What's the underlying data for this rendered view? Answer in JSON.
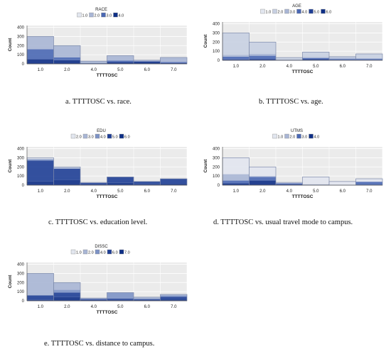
{
  "colors": {
    "plot_bg": "#ebebeb",
    "grid": "#ffffff",
    "axis": "#555555",
    "text": "#222222",
    "shades": [
      "#e2e6ef",
      "#c8d0e2",
      "#a9b6d5",
      "#7d93c6",
      "#4a68b4",
      "#1f3f96",
      "#0e2f86"
    ]
  },
  "captions": [
    "a. TTTTOSC vs. race.",
    "b. TTTTOSC vs. age.",
    "c. TTTTOSC vs. education level.",
    "d. TTTTOSC vs. usual travel mode to campus.",
    "e. TTTTOSC vs. distance to campus."
  ],
  "chart_data": [
    {
      "type": "bar",
      "stacked": true,
      "legend_title": "RACE",
      "xlabel": "TTTTOSC",
      "ylabel": "Count",
      "categories": [
        "1.0",
        "2.0",
        "4.0",
        "5.0",
        "6.0",
        "7.0"
      ],
      "x_positions": [
        1,
        2,
        3,
        4,
        5,
        6
      ],
      "yticks": [
        0,
        100,
        200,
        300,
        400
      ],
      "ylim": [
        0,
        420
      ],
      "series": [
        {
          "name": "1.0",
          "values": [
            0,
            0,
            0,
            0,
            0,
            0
          ]
        },
        {
          "name": "2.0",
          "values": [
            140,
            130,
            20,
            55,
            10,
            50
          ]
        },
        {
          "name": "3.0",
          "values": [
            110,
            30,
            5,
            15,
            5,
            10
          ]
        },
        {
          "name": "4.0",
          "values": [
            50,
            40,
            5,
            20,
            25,
            10
          ]
        }
      ],
      "totals": [
        300,
        200,
        30,
        90,
        40,
        70
      ]
    },
    {
      "type": "bar",
      "stacked": true,
      "legend_title": "AGE",
      "xlabel": "TTTTOSC",
      "ylabel": "Count",
      "categories": [
        "1.0",
        "2.0",
        "4.0",
        "5.0",
        "6.0",
        "7.0"
      ],
      "x_positions": [
        1,
        2,
        3,
        4,
        5,
        6
      ],
      "yticks": [
        0,
        100,
        200,
        300,
        400
      ],
      "ylim": [
        0,
        420
      ],
      "series": [
        {
          "name": "1.0",
          "values": [
            0,
            0,
            0,
            0,
            0,
            0
          ]
        },
        {
          "name": "2.0",
          "values": [
            240,
            130,
            20,
            55,
            10,
            45
          ]
        },
        {
          "name": "3.0",
          "values": [
            20,
            20,
            5,
            10,
            15,
            10
          ]
        },
        {
          "name": "4.0",
          "values": [
            30,
            35,
            0,
            10,
            10,
            10
          ]
        },
        {
          "name": "5.0",
          "values": [
            10,
            15,
            5,
            15,
            5,
            5
          ]
        },
        {
          "name": "6.0",
          "values": [
            0,
            0,
            0,
            0,
            0,
            0
          ]
        }
      ],
      "totals": [
        300,
        200,
        30,
        90,
        40,
        70
      ]
    },
    {
      "type": "bar",
      "stacked": true,
      "legend_title": "EDU",
      "xlabel": "TTTTOSC",
      "ylabel": "Count",
      "categories": [
        "1.0",
        "2.0",
        "4.0",
        "5.0",
        "6.0",
        "7.0"
      ],
      "x_positions": [
        1,
        2,
        3,
        4,
        5,
        6
      ],
      "yticks": [
        0,
        100,
        200,
        300,
        400
      ],
      "ylim": [
        0,
        420
      ],
      "series": [
        {
          "name": "2.0",
          "values": [
            10,
            5,
            0,
            0,
            0,
            0
          ]
        },
        {
          "name": "3.0",
          "values": [
            10,
            10,
            5,
            0,
            0,
            0
          ]
        },
        {
          "name": "4.0",
          "values": [
            10,
            5,
            0,
            0,
            0,
            0
          ]
        },
        {
          "name": "5.0",
          "values": [
            230,
            125,
            15,
            65,
            30,
            55
          ]
        },
        {
          "name": "6.0",
          "values": [
            40,
            55,
            10,
            25,
            10,
            15
          ]
        }
      ],
      "totals": [
        300,
        200,
        30,
        90,
        40,
        70
      ]
    },
    {
      "type": "bar",
      "stacked": true,
      "legend_title": "UTMS",
      "xlabel": "TTTTOSC",
      "ylabel": "Count",
      "categories": [
        "1.0",
        "2.0",
        "4.0",
        "5.0",
        "6.0",
        "7.0"
      ],
      "x_positions": [
        1,
        2,
        3,
        4,
        5,
        6
      ],
      "yticks": [
        0,
        100,
        200,
        300,
        400
      ],
      "ylim": [
        0,
        420
      ],
      "series": [
        {
          "name": "1.0",
          "values": [
            180,
            100,
            5,
            80,
            40,
            30
          ]
        },
        {
          "name": "2.0",
          "values": [
            70,
            10,
            5,
            10,
            0,
            5
          ]
        },
        {
          "name": "3.0",
          "values": [
            30,
            40,
            10,
            0,
            0,
            35
          ]
        },
        {
          "name": "4.0",
          "values": [
            20,
            50,
            10,
            0,
            0,
            0
          ]
        }
      ],
      "totals": [
        300,
        200,
        30,
        90,
        40,
        70
      ]
    },
    {
      "type": "bar",
      "stacked": true,
      "legend_title": "DISSC",
      "xlabel": "TTTTOSC",
      "ylabel": "Count",
      "categories": [
        "1.0",
        "2.0",
        "4.0",
        "5.0",
        "6.0",
        "7.0"
      ],
      "x_positions": [
        1,
        2,
        3,
        4,
        5,
        6
      ],
      "yticks": [
        0,
        100,
        200,
        300,
        400
      ],
      "ylim": [
        0,
        420
      ],
      "series": [
        {
          "name": "1.0",
          "values": [
            0,
            0,
            0,
            0,
            0,
            0
          ]
        },
        {
          "name": "2.0",
          "values": [
            240,
            80,
            10,
            0,
            20,
            10
          ]
        },
        {
          "name": "4.0",
          "values": [
            0,
            30,
            0,
            65,
            0,
            15
          ]
        },
        {
          "name": "6.0",
          "values": [
            50,
            50,
            10,
            15,
            10,
            30
          ]
        },
        {
          "name": "7.0",
          "values": [
            10,
            40,
            10,
            10,
            10,
            15
          ]
        }
      ],
      "totals": [
        300,
        200,
        30,
        90,
        40,
        70
      ]
    }
  ]
}
